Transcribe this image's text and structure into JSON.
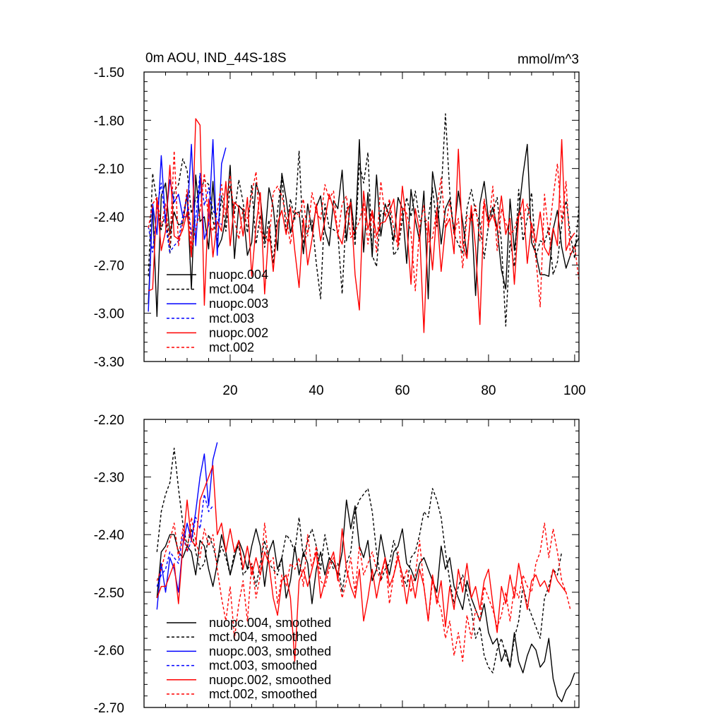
{
  "chart_data": [
    {
      "type": "line",
      "title": "0m AOU, IND_44S-18S",
      "units": "mmol/m^3",
      "xlim": [
        0,
        101
      ],
      "ylim": [
        -3.3,
        -1.5
      ],
      "yticks": [
        -1.5,
        -1.8,
        -2.1,
        -2.4,
        -2.7,
        -3.0,
        -3.3
      ],
      "ytick_labels": [
        "-1.50",
        "-1.80",
        "-2.10",
        "-2.40",
        "-2.70",
        "-3.00",
        "-3.30"
      ],
      "xticks": [
        20,
        40,
        60,
        80,
        100
      ],
      "xtick_labels": [
        "20",
        "40",
        "60",
        "80",
        "100"
      ],
      "legend": [
        "nuopc.004",
        "mct.004",
        "nuopc.003",
        "mct.003",
        "nuopc.002",
        "mct.002"
      ],
      "series": [
        {
          "name": "nuopc.004",
          "color": "#000000",
          "dash": "solid",
          "x_start": 1,
          "values": [
            -2.94,
            -2.33,
            -3.02,
            -2.27,
            -2.19,
            -2.51,
            -2.37,
            -2.45,
            -2.44,
            -2.26,
            -2.85,
            -2.14,
            -2.43,
            -2.4,
            -2.6,
            -2.18,
            -2.6,
            -2.54,
            -2.41,
            -2.08,
            -2.66,
            -2.33,
            -2.36,
            -2.64,
            -2.56,
            -2.19,
            -2.28,
            -2.55,
            -2.22,
            -2.34,
            -2.61,
            -2.13,
            -2.29,
            -2.5,
            -2.38,
            -2.37,
            -2.63,
            -2.32,
            -2.49,
            -2.34,
            -2.27,
            -2.49,
            -2.58,
            -2.3,
            -2.35,
            -2.11,
            -2.55,
            -2.29,
            -2.53,
            -1.92,
            -2.62,
            -2.25,
            -2.65,
            -2.14,
            -2.52,
            -2.32,
            -2.4,
            -2.55,
            -2.28,
            -2.35,
            -2.69,
            -2.23,
            -2.42,
            -2.55,
            -2.24,
            -2.91,
            -2.12,
            -2.28,
            -2.57,
            -2.35,
            -2.29,
            -2.49,
            -2.24,
            -2.43,
            -2.64,
            -2.36,
            -2.89,
            -2.32,
            -2.18,
            -2.42,
            -2.34,
            -2.47,
            -2.73,
            -2.85,
            -2.29,
            -2.61,
            -2.38,
            -2.14,
            -1.95,
            -2.56,
            -2.63,
            -2.76,
            -2.76,
            -2.77,
            -2.48,
            -2.36,
            -2.59,
            -2.72,
            -2.64,
            -2.58,
            -2.53
          ]
        },
        {
          "name": "mct.004",
          "color": "#000000",
          "dash": "dashed",
          "x_start": 1,
          "values": [
            -2.77,
            -2.13,
            -2.31,
            -2.48,
            -2.38,
            -2.63,
            -2.24,
            -2.2,
            -2.04,
            -2.11,
            -2.38,
            -2.29,
            -2.25,
            -2.17,
            -2.2,
            -2.42,
            -2.55,
            -2.27,
            -2.49,
            -2.21,
            -2.38,
            -2.17,
            -2.31,
            -2.5,
            -2.2,
            -2.57,
            -2.39,
            -2.59,
            -2.42,
            -2.69,
            -2.36,
            -2.15,
            -2.5,
            -2.29,
            -2.42,
            -1.99,
            -2.57,
            -2.49,
            -2.42,
            -2.69,
            -2.91,
            -2.32,
            -2.47,
            -2.48,
            -2.5,
            -2.88,
            -2.35,
            -2.32,
            -2.58,
            -2.07,
            -2.19,
            -2.0,
            -2.64,
            -2.71,
            -2.36,
            -2.4,
            -2.31,
            -2.64,
            -2.6,
            -2.42,
            -2.28,
            -2.4,
            -2.24,
            -2.42,
            -2.43,
            -2.42,
            -2.22,
            -2.46,
            -2.26,
            -1.76,
            -2.25,
            -2.51,
            -2.57,
            -2.63,
            -2.35,
            -2.23,
            -2.37,
            -2.43,
            -2.66,
            -2.45,
            -2.37,
            -2.28,
            -2.56,
            -3.08,
            -2.55,
            -2.71,
            -2.23,
            -2.55,
            -2.41,
            -2.25,
            -2.65,
            -2.55,
            -2.56,
            -2.47,
            -2.76,
            -2.68,
            -2.45,
            -2.3,
            -2.51,
            -2.66,
            -2.33
          ]
        },
        {
          "name": "nuopc.003",
          "color": "#0000ff",
          "dash": "solid",
          "x_start": 1,
          "values": [
            -2.99,
            -2.32,
            -2.51,
            -2.02,
            -2.44,
            -2.17,
            -2.31,
            -2.26,
            -2.4,
            -2.4,
            -1.95,
            -2.58,
            -2.15,
            -2.54,
            -2.45,
            -1.92,
            -2.64,
            -2.07,
            -1.97
          ]
        },
        {
          "name": "mct.003",
          "color": "#0000ff",
          "dash": "dashed",
          "x_start": 1,
          "values": [
            -2.46,
            -2.62,
            -2.35,
            -2.19,
            -2.45,
            -2.62,
            -2.58,
            -2.55,
            -2.39,
            -2.27,
            -2.51,
            -2.41,
            -2.13,
            -2.33,
            -2.22,
            -2.36,
            -2.41,
            -2.45
          ]
        },
        {
          "name": "nuopc.002",
          "color": "#ff0000",
          "dash": "solid",
          "x_start": 1,
          "values": [
            -2.86,
            -2.85,
            -2.28,
            -2.61,
            -2.49,
            -2.08,
            -2.52,
            -2.54,
            -2.48,
            -2.37,
            -2.65,
            -1.79,
            -1.83,
            -2.95,
            -2.29,
            -2.65,
            -2.43,
            -2.49,
            -2.18,
            -2.58,
            -2.31,
            -2.34,
            -2.52,
            -2.28,
            -2.77,
            -2.46,
            -2.25,
            -2.88,
            -2.47,
            -2.74,
            -2.44,
            -2.36,
            -2.51,
            -2.34,
            -2.61,
            -2.84,
            -2.41,
            -2.7,
            -2.54,
            -2.32,
            -2.55,
            -2.42,
            -2.26,
            -2.35,
            -2.51,
            -2.57,
            -2.38,
            -2.31,
            -2.76,
            -2.98,
            -2.24,
            -2.48,
            -2.36,
            -2.52,
            -2.44,
            -2.43,
            -2.37,
            -2.29,
            -2.57,
            -2.21,
            -2.45,
            -2.82,
            -2.35,
            -2.49,
            -3.12,
            -2.43,
            -2.73,
            -2.36,
            -2.74,
            -2.47,
            -2.41,
            -2.63,
            -1.98,
            -2.57,
            -2.66,
            -2.33,
            -2.59,
            -3.07,
            -2.31,
            -2.44,
            -2.39,
            -2.48,
            -2.27,
            -2.51,
            -2.41,
            -2.82,
            -2.4,
            -2.29,
            -2.69,
            -2.44,
            -2.56,
            -2.37,
            -2.59,
            -2.64,
            -2.47,
            -2.58,
            -1.92,
            -2.61,
            -2.54,
            -2.5
          ]
        },
        {
          "name": "mct.002",
          "color": "#ff0000",
          "dash": "dashed",
          "x_start": 1,
          "values": [
            -2.47,
            -2.32,
            -2.28,
            -2.46,
            -2.32,
            -2.58,
            -1.99,
            -2.58,
            -2.44,
            -2.23,
            -2.61,
            -2.47,
            -2.37,
            -2.13,
            -2.43,
            -2.49,
            -2.36,
            -2.2,
            -2.39,
            -2.14,
            -2.42,
            -2.54,
            -2.35,
            -2.41,
            -2.26,
            -2.12,
            -2.49,
            -2.52,
            -2.56,
            -2.25,
            -2.21,
            -2.27,
            -2.4,
            -2.57,
            -2.36,
            -2.4,
            -2.29,
            -2.52,
            -2.25,
            -2.37,
            -2.42,
            -2.2,
            -2.29,
            -2.24,
            -2.52,
            -2.32,
            -2.27,
            -2.53,
            -2.49,
            -2.43,
            -2.31,
            -2.57,
            -2.38,
            -2.62,
            -2.18,
            -2.4,
            -2.29,
            -2.48,
            -2.59,
            -2.34,
            -2.38,
            -2.5,
            -2.86,
            -2.47,
            -2.33,
            -2.56,
            -2.53,
            -2.35,
            -2.16,
            -2.47,
            -2.3,
            -2.51,
            -2.41,
            -2.72,
            -2.39,
            -2.43,
            -2.33,
            -2.55,
            -2.29,
            -2.47,
            -2.21,
            -2.61,
            -2.35,
            -2.44,
            -2.51,
            -2.48,
            -2.38,
            -2.41,
            -2.32,
            -2.47,
            -2.66,
            -2.96,
            -2.26,
            -2.52,
            -2.28,
            -2.07,
            -2.43,
            -2.18,
            -2.64,
            -2.58,
            -2.8
          ]
        }
      ]
    },
    {
      "type": "line",
      "title": "",
      "xlim": [
        0,
        101
      ],
      "ylim": [
        -2.7,
        -2.2
      ],
      "yticks": [
        -2.2,
        -2.3,
        -2.4,
        -2.5,
        -2.6,
        -2.7
      ],
      "ytick_labels": [
        "-2.20",
        "-2.30",
        "-2.40",
        "-2.50",
        "-2.60",
        "-2.70"
      ],
      "legend": [
        "nuopc.004, smoothed",
        "mct.004, smoothed",
        "nuopc.003, smoothed",
        "mct.003, smoothed",
        "nuopc.002, smoothed",
        "mct.002, smoothed"
      ],
      "series": [
        {
          "name": "nuopc.004, smoothed",
          "color": "#000000",
          "dash": "solid",
          "x_start": 3,
          "values": [
            -2.51,
            -2.43,
            -2.42,
            -2.4,
            -2.4,
            -2.43,
            -2.44,
            -2.42,
            -2.43,
            -2.47,
            -2.41,
            -2.42,
            -2.46,
            -2.49,
            -2.45,
            -2.4,
            -2.43,
            -2.47,
            -2.44,
            -2.41,
            -2.43,
            -2.46,
            -2.42,
            -2.39,
            -2.42,
            -2.49,
            -2.43,
            -2.41,
            -2.46,
            -2.44,
            -2.51,
            -2.48,
            -2.42,
            -2.47,
            -2.43,
            -2.45,
            -2.52,
            -2.46,
            -2.43,
            -2.47,
            -2.44,
            -2.45,
            -2.47,
            -2.43,
            -2.34,
            -2.39,
            -2.35,
            -2.42,
            -2.44,
            -2.41,
            -2.48,
            -2.46,
            -2.4,
            -2.44,
            -2.47,
            -2.43,
            -2.42,
            -2.39,
            -2.45,
            -2.46,
            -2.48,
            -2.45,
            -2.44,
            -2.46,
            -2.48,
            -2.5,
            -2.42,
            -2.46,
            -2.44,
            -2.49,
            -2.51,
            -2.53,
            -2.48,
            -2.51,
            -2.53,
            -2.55,
            -2.52,
            -2.57,
            -2.59,
            -2.58,
            -2.62,
            -2.6,
            -2.63,
            -2.57,
            -2.62,
            -2.64,
            -2.61,
            -2.59,
            -2.6,
            -2.63,
            -2.62,
            -2.58,
            -2.65,
            -2.68,
            -2.69,
            -2.67,
            -2.66,
            -2.64
          ]
        },
        {
          "name": "mct.004, smoothed",
          "color": "#000000",
          "dash": "dashed",
          "x_start": 3,
          "values": [
            -2.43,
            -2.36,
            -2.33,
            -2.31,
            -2.25,
            -2.32,
            -2.38,
            -2.42,
            -2.39,
            -2.43,
            -2.46,
            -2.45,
            -2.4,
            -2.42,
            -2.45,
            -2.42,
            -2.44,
            -2.47,
            -2.43,
            -2.42,
            -2.47,
            -2.46,
            -2.45,
            -2.49,
            -2.45,
            -2.41,
            -2.45,
            -2.46,
            -2.47,
            -2.44,
            -2.4,
            -2.41,
            -2.43,
            -2.37,
            -2.44,
            -2.41,
            -2.39,
            -2.42,
            -2.46,
            -2.4,
            -2.44,
            -2.46,
            -2.45,
            -2.5,
            -2.45,
            -2.43,
            -2.36,
            -2.34,
            -2.33,
            -2.32,
            -2.36,
            -2.43,
            -2.48,
            -2.46,
            -2.45,
            -2.41,
            -2.44,
            -2.47,
            -2.49,
            -2.44,
            -2.43,
            -2.4,
            -2.36,
            -2.37,
            -2.32,
            -2.34,
            -2.37,
            -2.43,
            -2.48,
            -2.52,
            -2.49,
            -2.47,
            -2.5,
            -2.53,
            -2.58,
            -2.56,
            -2.61,
            -2.63,
            -2.64,
            -2.6,
            -2.58,
            -2.61,
            -2.63,
            -2.58,
            -2.55,
            -2.49,
            -2.52,
            -2.54,
            -2.56,
            -2.58,
            -2.51,
            -2.49,
            -2.46,
            -2.47,
            -2.43
          ]
        },
        {
          "name": "nuopc.003, smoothed",
          "color": "#0000ff",
          "dash": "solid",
          "x_start": 3,
          "values": [
            -2.53,
            -2.45,
            -2.5,
            -2.44,
            -2.46,
            -2.5,
            -2.42,
            -2.38,
            -2.41,
            -2.36,
            -2.3,
            -2.26,
            -2.35,
            -2.27,
            -2.24
          ]
        },
        {
          "name": "mct.003, smoothed",
          "color": "#0000ff",
          "dash": "dashed",
          "x_start": 3,
          "values": [
            -2.49,
            -2.47,
            -2.46,
            -2.43,
            -2.44,
            -2.45,
            -2.4,
            -2.43,
            -2.41,
            -2.37,
            -2.39,
            -2.33,
            -2.36,
            -2.35
          ]
        },
        {
          "name": "nuopc.002, smoothed",
          "color": "#ff0000",
          "dash": "solid",
          "x_start": 3,
          "values": [
            -2.51,
            -2.49,
            -2.49,
            -2.47,
            -2.45,
            -2.52,
            -2.42,
            -2.34,
            -2.41,
            -2.42,
            -2.34,
            -2.32,
            -2.3,
            -2.28,
            -2.4,
            -2.38,
            -2.43,
            -2.39,
            -2.43,
            -2.41,
            -2.46,
            -2.42,
            -2.47,
            -2.44,
            -2.47,
            -2.43,
            -2.45,
            -2.51,
            -2.54,
            -2.48,
            -2.47,
            -2.51,
            -2.62,
            -2.48,
            -2.46,
            -2.49,
            -2.46,
            -2.43,
            -2.51,
            -2.48,
            -2.45,
            -2.43,
            -2.48,
            -2.39,
            -2.46,
            -2.49,
            -2.51,
            -2.46,
            -2.55,
            -2.51,
            -2.46,
            -2.51,
            -2.47,
            -2.44,
            -2.49,
            -2.47,
            -2.44,
            -2.47,
            -2.52,
            -2.47,
            -2.51,
            -2.46,
            -2.49,
            -2.55,
            -2.47,
            -2.52,
            -2.48,
            -2.56,
            -2.49,
            -2.53,
            -2.46,
            -2.5,
            -2.45,
            -2.51,
            -2.49,
            -2.53,
            -2.48,
            -2.46,
            -2.52,
            -2.57,
            -2.49,
            -2.52,
            -2.47,
            -2.51,
            -2.45,
            -2.49,
            -2.53,
            -2.48,
            -2.47,
            -2.49,
            -2.48,
            -2.5,
            -2.46,
            -2.48,
            -2.49,
            -2.5
          ]
        },
        {
          "name": "mct.002, smoothed",
          "color": "#ff0000",
          "dash": "dashed",
          "x_start": 3,
          "values": [
            -2.48,
            -2.46,
            -2.43,
            -2.41,
            -2.38,
            -2.44,
            -2.39,
            -2.43,
            -2.37,
            -2.41,
            -2.44,
            -2.39,
            -2.42,
            -2.4,
            -2.46,
            -2.51,
            -2.55,
            -2.49,
            -2.58,
            -2.52,
            -2.48,
            -2.55,
            -2.45,
            -2.51,
            -2.47,
            -2.38,
            -2.45,
            -2.44,
            -2.52,
            -2.47,
            -2.49,
            -2.45,
            -2.46,
            -2.44,
            -2.49,
            -2.4,
            -2.46,
            -2.42,
            -2.48,
            -2.49,
            -2.46,
            -2.44,
            -2.47,
            -2.51,
            -2.48,
            -2.44,
            -2.5,
            -2.42,
            -2.47,
            -2.45,
            -2.43,
            -2.46,
            -2.48,
            -2.44,
            -2.52,
            -2.47,
            -2.43,
            -2.49,
            -2.46,
            -2.5,
            -2.47,
            -2.41,
            -2.49,
            -2.55,
            -2.48,
            -2.51,
            -2.53,
            -2.58,
            -2.55,
            -2.61,
            -2.57,
            -2.62,
            -2.54,
            -2.58,
            -2.53,
            -2.55,
            -2.49,
            -2.51,
            -2.53,
            -2.56,
            -2.54,
            -2.5,
            -2.55,
            -2.49,
            -2.51,
            -2.47,
            -2.49,
            -2.5,
            -2.45,
            -2.43,
            -2.38,
            -2.44,
            -2.39,
            -2.43,
            -2.48,
            -2.5,
            -2.53
          ]
        }
      ]
    }
  ]
}
